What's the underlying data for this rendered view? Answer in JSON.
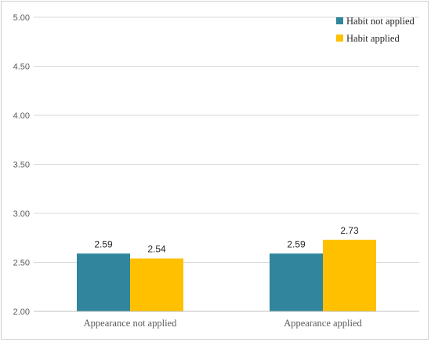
{
  "chart_data": {
    "type": "bar",
    "categories": [
      "Appearance not applied",
      "Appearance applied"
    ],
    "series": [
      {
        "name": "Habit not applied",
        "values": [
          2.59,
          2.59
        ],
        "color": "#31859C"
      },
      {
        "name": "Habit applied",
        "values": [
          2.54,
          2.73
        ],
        "color": "#FFC000"
      }
    ],
    "data_labels": [
      [
        "2.59",
        "2.59"
      ],
      [
        "2.54",
        "2.73"
      ]
    ],
    "ylim": [
      2.0,
      5.0
    ],
    "yticks": [
      "2.00",
      "2.50",
      "3.00",
      "3.50",
      "4.00",
      "4.50",
      "5.00"
    ],
    "ytick_values": [
      2.0,
      2.5,
      3.0,
      3.5,
      4.0,
      4.5,
      5.0
    ],
    "grid": true,
    "legend_position": "top-right",
    "gridline_color": "#d9d9d9",
    "axis_color": "#bfbfbf"
  }
}
